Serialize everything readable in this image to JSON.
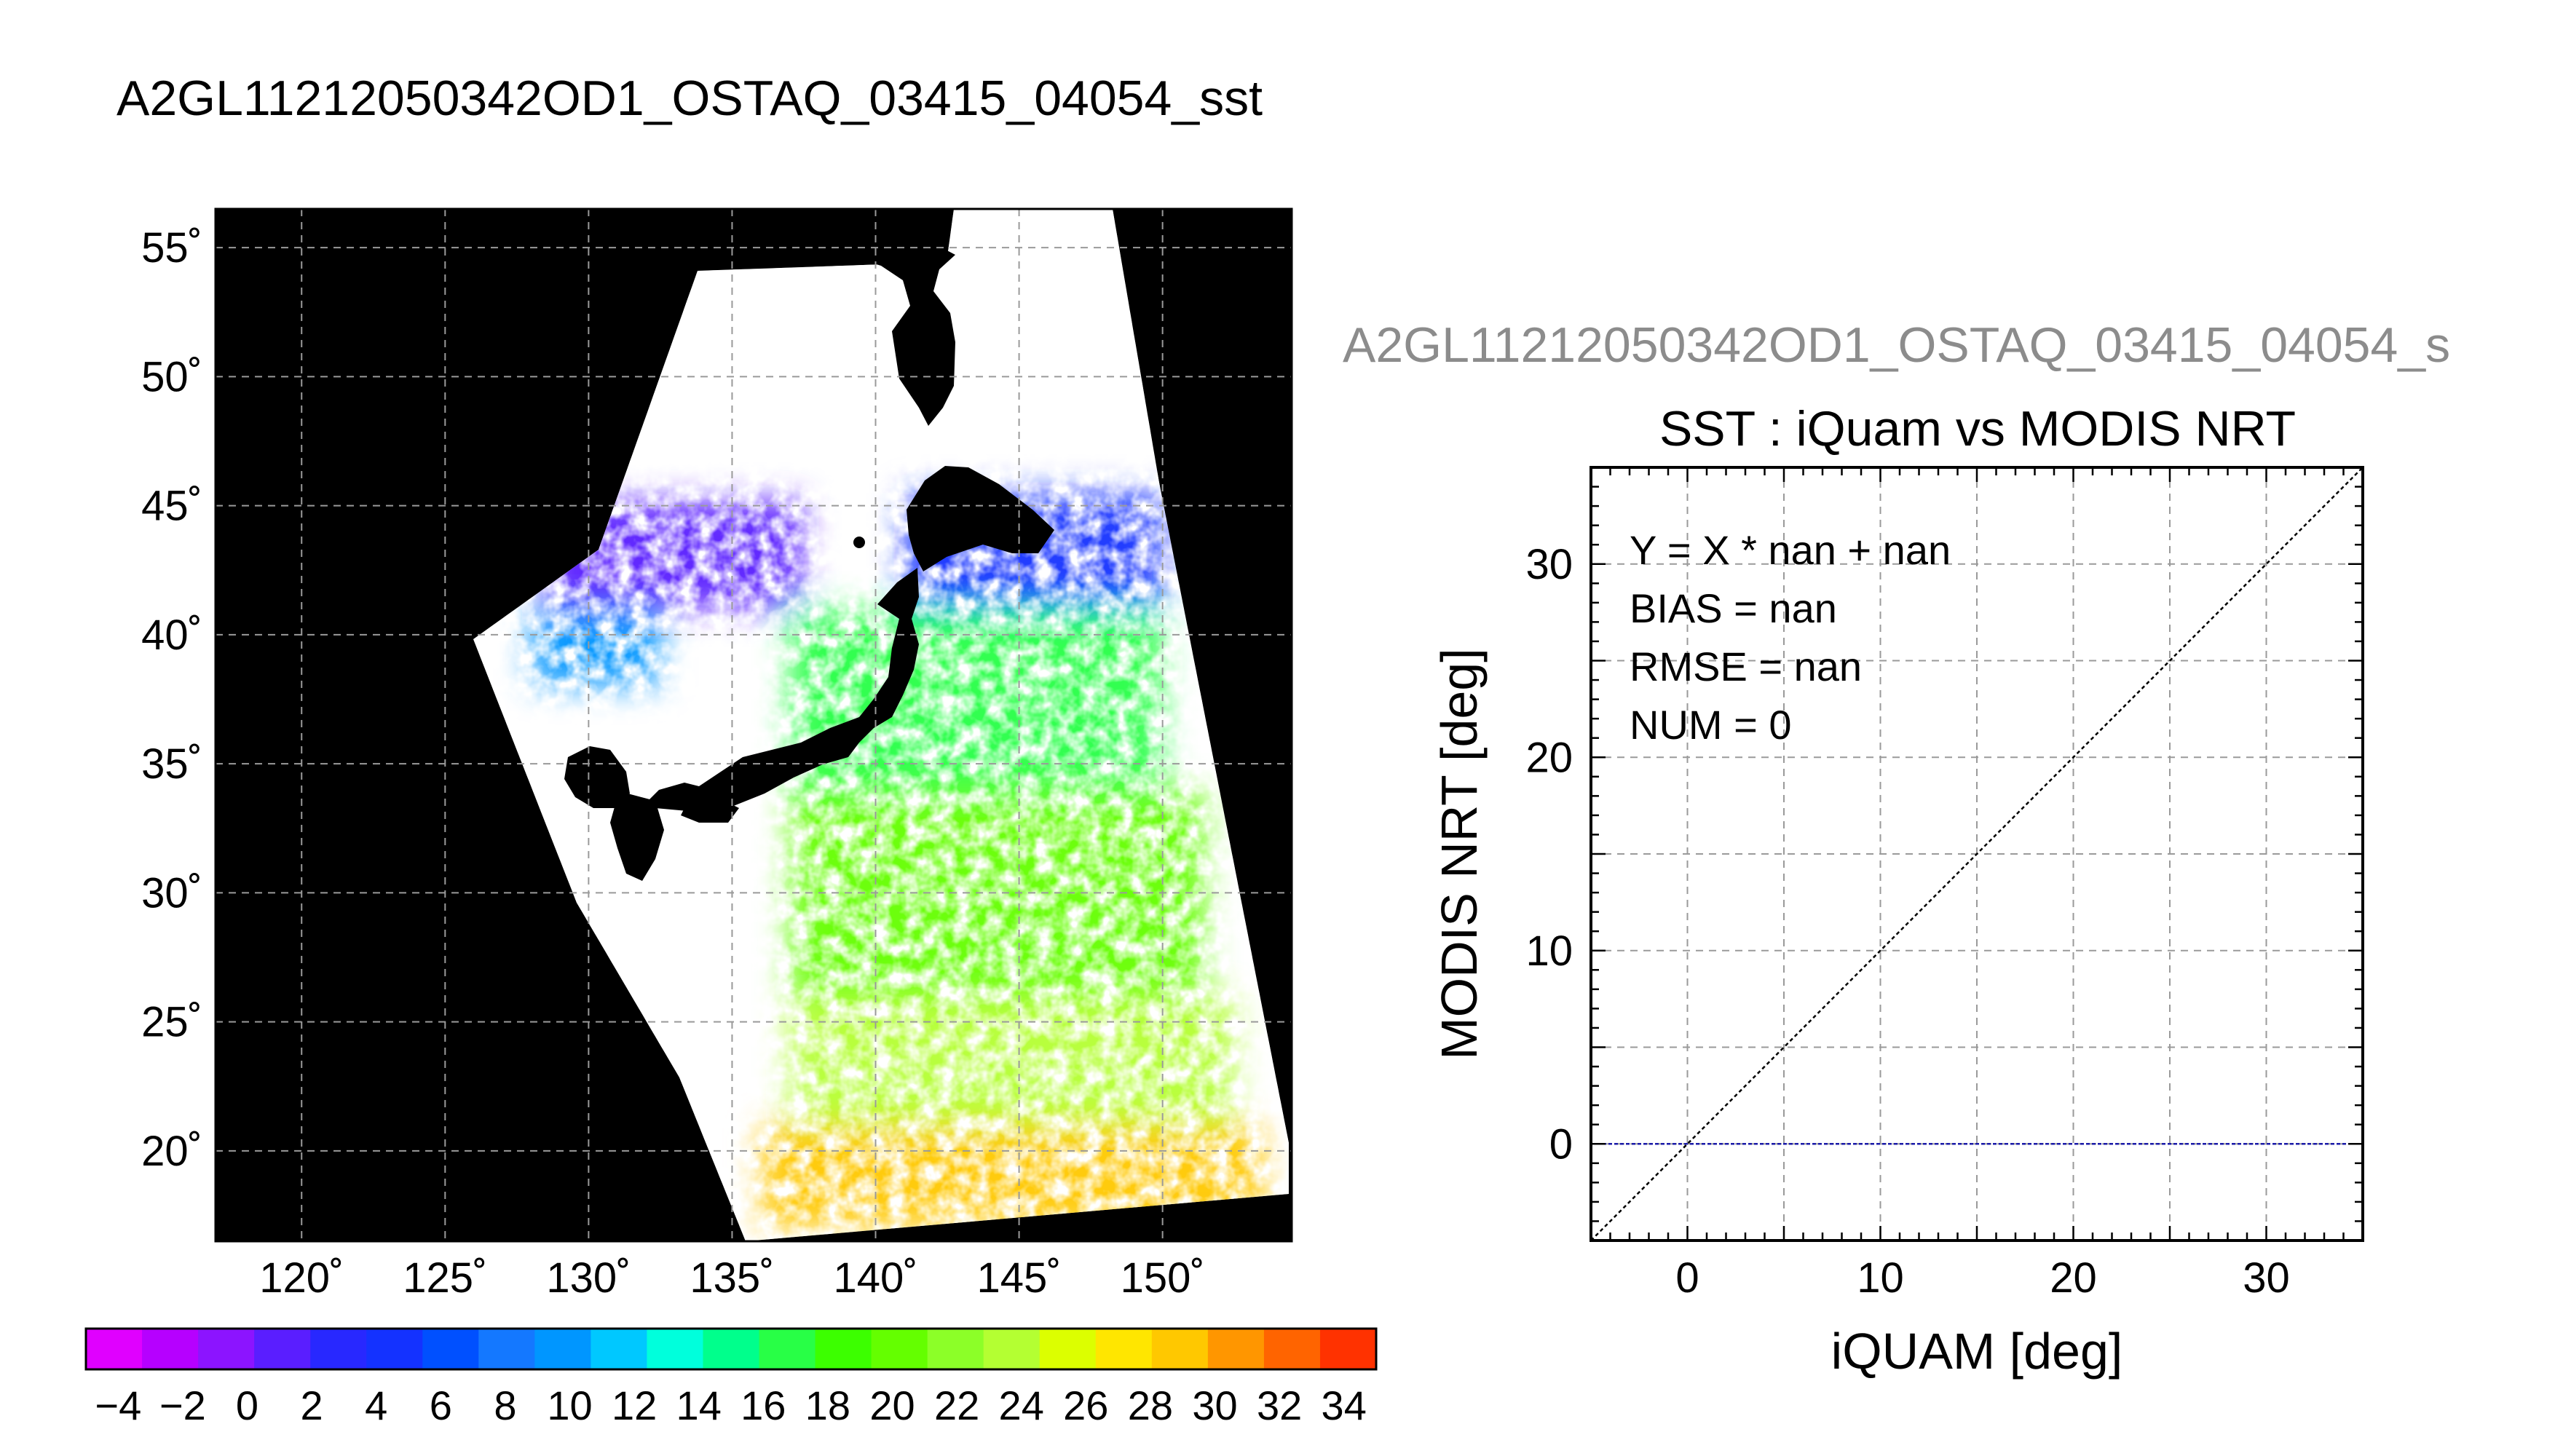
{
  "figure_title": "A2GL11212050342OD1_OSTAQ_03415_04054_sst",
  "scatter_panel_header": "A2GL11212050342OD1_OSTAQ_03415_04054_s",
  "colors": {
    "map_background": "#000000",
    "gridline": "#9a9a9a",
    "diagonal": "#000000",
    "zero_line": "#1a1aa8"
  },
  "chart_data": [
    {
      "type": "heatmap",
      "subtype": "satellite-map",
      "xlim": [
        117,
        154.5
      ],
      "ylim": [
        16.5,
        56.5
      ],
      "x_ticks": [
        120,
        125,
        130,
        135,
        140,
        145,
        150
      ],
      "y_ticks": [
        20,
        25,
        30,
        35,
        40,
        45,
        50,
        55
      ],
      "x_tick_labels": [
        "120˚",
        "125˚",
        "130˚",
        "135˚",
        "140˚",
        "145˚",
        "150˚"
      ],
      "y_tick_labels": [
        "20˚",
        "25˚",
        "30˚",
        "35˚",
        "40˚",
        "45˚",
        "50˚",
        "55˚"
      ],
      "grid": true,
      "colorbar": {
        "min": -5,
        "max": 35,
        "labels": [
          "−4",
          "−2",
          "0",
          "2",
          "4",
          "6",
          "8",
          "10",
          "12",
          "14",
          "16",
          "18",
          "20",
          "22",
          "24",
          "26",
          "28",
          "30",
          "32",
          "34"
        ],
        "colors": [
          "#e000ff",
          "#b600ff",
          "#8c14ff",
          "#5a1eff",
          "#2828ff",
          "#1432ff",
          "#0050ff",
          "#1478ff",
          "#0096ff",
          "#00c8ff",
          "#00ffdc",
          "#00ff8c",
          "#28ff46",
          "#3cff00",
          "#64ff00",
          "#8cff28",
          "#b4ff32",
          "#dcff00",
          "#ffe600",
          "#ffc800",
          "#ff9600",
          "#ff6400",
          "#ff3200"
        ]
      },
      "sst_regions": [
        {
          "lon": [
            128.5,
            137.5
          ],
          "lat": [
            41.0,
            45.2
          ],
          "sst": 1.5
        },
        {
          "lon": [
            128.0,
            132.5
          ],
          "lat": [
            38.0,
            41.0
          ],
          "sst": 10.0
        },
        {
          "lon": [
            141.0,
            150.0
          ],
          "lat": [
            41.0,
            45.5
          ],
          "sst": 4.0
        },
        {
          "lon": [
            137.0,
            150.0
          ],
          "lat": [
            34.0,
            41.0
          ],
          "sst": 16.0
        },
        {
          "lon": [
            137.0,
            151.5
          ],
          "lat": [
            26.0,
            34.0
          ],
          "sst": 20.0
        },
        {
          "lon": [
            137.0,
            152.5
          ],
          "lat": [
            21.0,
            26.0
          ],
          "sst": 24.0
        },
        {
          "lon": [
            136.0,
            153.5
          ],
          "lat": [
            17.0,
            21.0
          ],
          "sst": 28.5
        }
      ]
    },
    {
      "type": "scatter",
      "title": "SST : iQuam vs MODIS NRT",
      "xlabel": "iQUAM [deg]",
      "ylabel": "MODIS NRT [deg]",
      "xlim": [
        -5,
        35
      ],
      "ylim": [
        -5,
        35
      ],
      "x_ticks": [
        0,
        10,
        20,
        30
      ],
      "y_ticks": [
        0,
        10,
        20,
        30
      ],
      "grid": true,
      "reference_lines": [
        {
          "kind": "diagonal",
          "from": [
            -5,
            -5
          ],
          "to": [
            35,
            35
          ]
        },
        {
          "kind": "horizontal",
          "y": 0
        }
      ],
      "points": [],
      "stats": [
        "Y = X * nan + nan",
        "BIAS = nan",
        "RMSE = nan",
        "NUM = 0"
      ]
    }
  ]
}
